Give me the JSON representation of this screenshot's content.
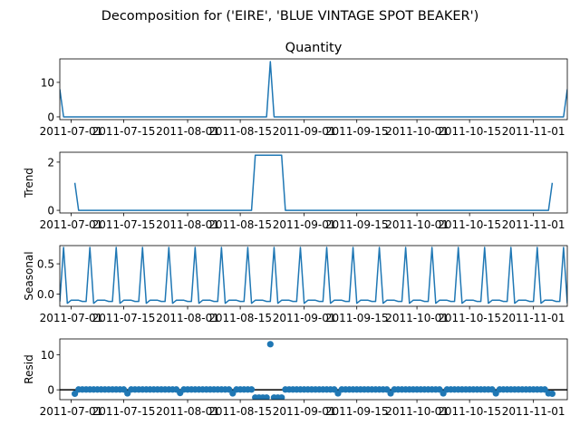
{
  "figure": {
    "suptitle": "Decomposition for ('EIRE', 'BLUE VINTAGE SPOT BEAKER')"
  },
  "colors": {
    "series": "#1f77b4",
    "axis": "#000000",
    "zero_line": "#000000"
  },
  "chart_data": [
    {
      "type": "line",
      "title": "Quantity",
      "ylabel": "",
      "xlim": [
        "2011-06-28",
        "2011-11-10"
      ],
      "ylim": [
        -0.8,
        16.8
      ],
      "yticks": [
        0,
        10
      ],
      "xticks": [
        "2011-07-01",
        "2011-07-15",
        "2011-08-01",
        "2011-08-15",
        "2011-09-01",
        "2011-09-15",
        "2011-10-01",
        "2011-10-15",
        "2011-11-01"
      ],
      "points": [
        {
          "x": "2011-06-28",
          "y": 8
        },
        {
          "x": "2011-06-29",
          "y": 0
        },
        {
          "x": "2011-08-22",
          "y": 0
        },
        {
          "x": "2011-08-23",
          "y": 16
        },
        {
          "x": "2011-08-24",
          "y": 0
        },
        {
          "x": "2011-11-09",
          "y": 0
        },
        {
          "x": "2011-11-10",
          "y": 8
        }
      ]
    },
    {
      "type": "line",
      "title": "",
      "ylabel": "Trend",
      "xlim": [
        "2011-06-28",
        "2011-11-10"
      ],
      "ylim": [
        -0.11,
        2.41
      ],
      "yticks": [
        0,
        2
      ],
      "xticks": [
        "2011-07-01",
        "2011-07-15",
        "2011-08-01",
        "2011-08-15",
        "2011-09-01",
        "2011-09-15",
        "2011-10-01",
        "2011-10-15",
        "2011-11-01"
      ],
      "points": [
        {
          "x": "2011-07-02",
          "y": 1.14
        },
        {
          "x": "2011-07-03",
          "y": 0
        },
        {
          "x": "2011-08-18",
          "y": 0
        },
        {
          "x": "2011-08-19",
          "y": 2.29
        },
        {
          "x": "2011-08-26",
          "y": 2.29
        },
        {
          "x": "2011-08-27",
          "y": 0
        },
        {
          "x": "2011-11-05",
          "y": 0
        },
        {
          "x": "2011-11-06",
          "y": 1.14
        }
      ]
    },
    {
      "type": "line",
      "title": "",
      "ylabel": "Seasonal",
      "xlim": [
        "2011-06-28",
        "2011-11-10"
      ],
      "ylim": [
        -0.2,
        0.8
      ],
      "yticks": [
        0.0,
        0.5
      ],
      "xticks": [
        "2011-07-01",
        "2011-07-15",
        "2011-08-01",
        "2011-08-15",
        "2011-09-01",
        "2011-09-15",
        "2011-10-01",
        "2011-10-15",
        "2011-11-01"
      ],
      "period": 7,
      "pattern_start": "2011-06-28",
      "pattern": [
        -0.12,
        0.77,
        -0.15,
        -0.1,
        -0.1,
        -0.1,
        -0.12
      ]
    },
    {
      "type": "scatter",
      "title": "",
      "ylabel": "Resid",
      "xlim": [
        "2011-06-28",
        "2011-11-10"
      ],
      "ylim": [
        -2.8,
        14.5
      ],
      "yticks": [
        0,
        10
      ],
      "xticks": [
        "2011-07-01",
        "2011-07-15",
        "2011-08-01",
        "2011-08-15",
        "2011-09-01",
        "2011-09-15",
        "2011-10-01",
        "2011-10-15",
        "2011-11-01"
      ],
      "zero_line": true,
      "default_value": 0.1,
      "x_start": "2011-07-02",
      "x_end": "2011-11-06",
      "special": [
        {
          "x": "2011-07-02",
          "y": -1.1
        },
        {
          "x": "2011-07-16",
          "y": -1.0
        },
        {
          "x": "2011-07-30",
          "y": -0.9
        },
        {
          "x": "2011-08-13",
          "y": -1.0
        },
        {
          "x": "2011-08-19",
          "y": -2.2
        },
        {
          "x": "2011-08-20",
          "y": -2.2
        },
        {
          "x": "2011-08-21",
          "y": -2.2
        },
        {
          "x": "2011-08-22",
          "y": -2.2
        },
        {
          "x": "2011-08-23",
          "y": 13.0
        },
        {
          "x": "2011-08-24",
          "y": -2.2
        },
        {
          "x": "2011-08-25",
          "y": -2.2
        },
        {
          "x": "2011-08-26",
          "y": -2.2
        },
        {
          "x": "2011-09-10",
          "y": -1.0
        },
        {
          "x": "2011-09-24",
          "y": -1.0
        },
        {
          "x": "2011-10-08",
          "y": -1.0
        },
        {
          "x": "2011-10-22",
          "y": -1.0
        },
        {
          "x": "2011-11-05",
          "y": -1.0
        },
        {
          "x": "2011-11-06",
          "y": -1.1
        }
      ]
    }
  ]
}
